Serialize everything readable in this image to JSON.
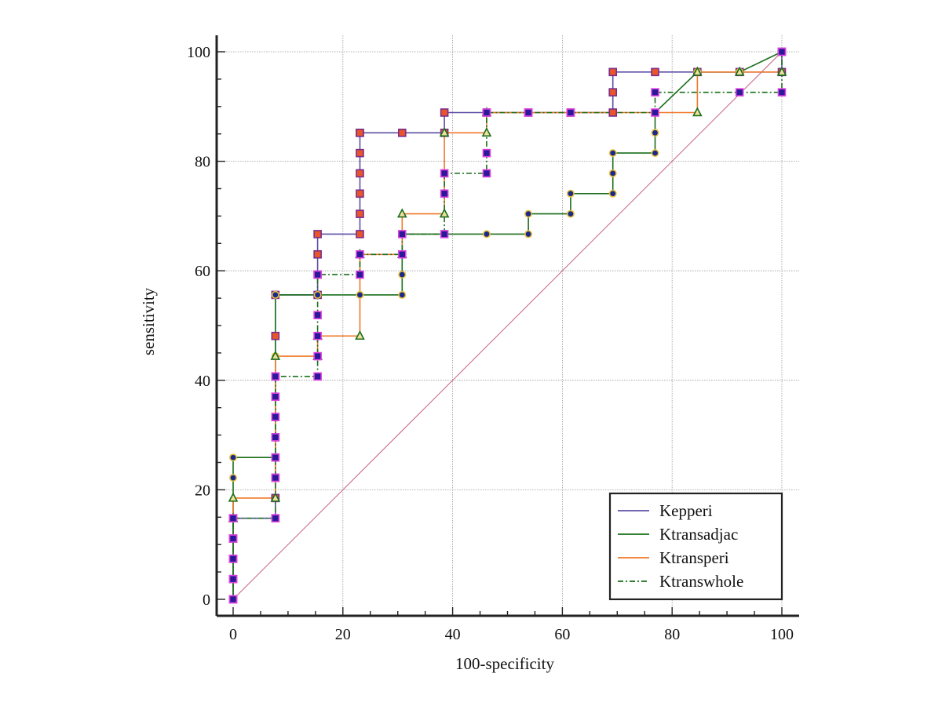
{
  "chart_data": {
    "type": "line",
    "title": "",
    "xlabel": "100-specificity",
    "ylabel": "sensitivity",
    "xlim": [
      0,
      100
    ],
    "ylim": [
      0,
      100
    ],
    "xticks": [
      0,
      20,
      40,
      60,
      80,
      100
    ],
    "yticks": [
      0,
      20,
      40,
      60,
      80,
      100
    ],
    "grid": true,
    "legend_position": "bottom-right",
    "diagonal_reference": {
      "x": [
        0,
        100
      ],
      "y": [
        0,
        100
      ],
      "color": "#c0507a"
    },
    "series": [
      {
        "name": "Kepperi",
        "color": "#5b4ea6",
        "marker": "square",
        "marker_fill": "#e8552a",
        "marker_edge": "#7b2d8b",
        "dash": "solid",
        "x": [
          0,
          0,
          0,
          0,
          0,
          7.7,
          7.7,
          7.7,
          7.7,
          7.7,
          7.7,
          7.7,
          7.7,
          7.7,
          7.7,
          15.4,
          15.4,
          15.4,
          15.4,
          23.1,
          23.1,
          23.1,
          23.1,
          23.1,
          23.1,
          23.1,
          30.8,
          38.5,
          38.5,
          46.2,
          53.8,
          61.5,
          69.2,
          69.2,
          69.2,
          76.9,
          84.6,
          92.3,
          100,
          100
        ],
        "y": [
          0,
          3.7,
          7.4,
          11.1,
          14.8,
          14.8,
          18.5,
          22.2,
          25.9,
          29.6,
          33.3,
          37,
          40.7,
          48.1,
          55.6,
          55.6,
          59.3,
          63,
          66.7,
          66.7,
          70.4,
          74.1,
          77.8,
          81.5,
          85.2,
          85.2,
          85.2,
          85.2,
          88.9,
          88.9,
          88.9,
          88.9,
          88.9,
          92.6,
          96.3,
          96.3,
          96.3,
          96.3,
          96.3,
          100
        ]
      },
      {
        "name": "Ktransadjac",
        "color": "#1a6e1a",
        "marker": "circle",
        "marker_fill": "#1a2a8a",
        "marker_edge": "#e8c040",
        "dash": "solid",
        "x": [
          0,
          0,
          0,
          0,
          7.7,
          7.7,
          7.7,
          15.4,
          23.1,
          30.8,
          30.8,
          30.8,
          38.5,
          46.2,
          53.8,
          53.8,
          61.5,
          61.5,
          69.2,
          69.2,
          69.2,
          76.9,
          76.9,
          76.9,
          84.6,
          92.3,
          100
        ],
        "y": [
          0,
          14.8,
          22.2,
          25.9,
          25.9,
          44.4,
          55.6,
          55.6,
          55.6,
          55.6,
          59.3,
          66.7,
          66.7,
          66.7,
          66.7,
          70.4,
          70.4,
          74.1,
          74.1,
          77.8,
          81.5,
          81.5,
          85.2,
          88.9,
          96.3,
          96.3,
          100
        ]
      },
      {
        "name": "Ktransperi",
        "color": "#f07828",
        "marker": "triangle",
        "marker_fill": "#f0e0a0",
        "marker_edge": "#1a6e1a",
        "dash": "solid",
        "x": [
          0,
          0,
          7.7,
          7.7,
          15.4,
          15.4,
          23.1,
          23.1,
          30.8,
          30.8,
          38.5,
          38.5,
          46.2,
          46.2,
          84.6,
          84.6,
          92.3,
          100
        ],
        "y": [
          14.8,
          18.5,
          18.5,
          44.4,
          44.4,
          48.1,
          48.1,
          63,
          63,
          70.4,
          70.4,
          85.2,
          85.2,
          88.9,
          88.9,
          96.3,
          96.3,
          96.3
        ]
      },
      {
        "name": "Ktranswhole",
        "color": "#1a6e1a",
        "marker": "square",
        "marker_fill": "#2a1a9a",
        "marker_edge": "#e040e0",
        "dash": "dashdot",
        "x": [
          0,
          0,
          0,
          0,
          0,
          7.7,
          7.7,
          7.7,
          7.7,
          7.7,
          7.7,
          7.7,
          7.7,
          15.4,
          15.4,
          15.4,
          15.4,
          15.4,
          23.1,
          23.1,
          30.8,
          30.8,
          38.5,
          38.5,
          38.5,
          46.2,
          46.2,
          46.2,
          53.8,
          61.5,
          76.9,
          76.9,
          92.3,
          100,
          100
        ],
        "y": [
          0,
          3.7,
          7.4,
          11.1,
          14.8,
          14.8,
          22.2,
          25.9,
          29.6,
          33.3,
          37,
          40.7,
          40.7,
          40.7,
          44.4,
          48.1,
          51.9,
          59.3,
          59.3,
          63,
          63,
          66.7,
          66.7,
          74.1,
          77.8,
          77.8,
          81.5,
          88.9,
          88.9,
          88.9,
          88.9,
          92.6,
          92.6,
          92.6,
          100
        ]
      }
    ]
  }
}
